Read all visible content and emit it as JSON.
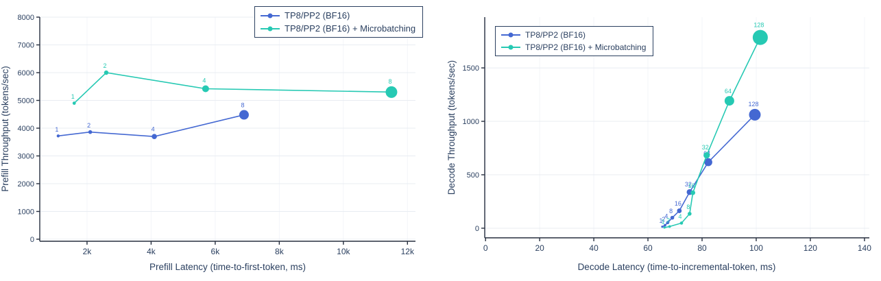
{
  "colors": {
    "blue": "#4468D2",
    "teal": "#26C9B3",
    "text": "#2a3f5f",
    "axis": "#262e3e",
    "grid": "#e8ecf2",
    "vgrid": "#f3f5f9",
    "background": "#ffffff"
  },
  "chart_data": [
    {
      "type": "line",
      "title": "",
      "xlabel": "Prefill Latency (time-to-first-token, ms)",
      "ylabel": "Prefill Throughput (tokens/sec)",
      "xlim": [
        525,
        12250
      ],
      "ylim": [
        -74,
        8000
      ],
      "grid": "on",
      "legend_position": "top-right-inside",
      "xticks": [
        {
          "v": 2000,
          "label": "2k"
        },
        {
          "v": 4000,
          "label": "4k"
        },
        {
          "v": 6000,
          "label": "6k"
        },
        {
          "v": 8000,
          "label": "8k"
        },
        {
          "v": 10000,
          "label": "10k"
        },
        {
          "v": 12000,
          "label": "12k"
        }
      ],
      "yticks": [
        {
          "v": 0,
          "label": "0"
        },
        {
          "v": 1000,
          "label": "1000"
        },
        {
          "v": 2000,
          "label": "2000"
        },
        {
          "v": 3000,
          "label": "3000"
        },
        {
          "v": 4000,
          "label": "4000"
        },
        {
          "v": 5000,
          "label": "5000"
        },
        {
          "v": 6000,
          "label": "6000"
        },
        {
          "v": 7000,
          "label": "7000"
        },
        {
          "v": 8000,
          "label": "8000"
        }
      ],
      "series": [
        {
          "name": "TP8/PP2 (BF16)",
          "color_key": "blue",
          "point_label_meaning": "batch size",
          "points": [
            {
              "label": "1",
              "x": 1100,
              "y": 3720,
              "r": 2.2
            },
            {
              "label": "2",
              "x": 2100,
              "y": 3860,
              "r": 2.8
            },
            {
              "label": "4",
              "x": 4100,
              "y": 3700,
              "r": 3.8
            },
            {
              "label": "8",
              "x": 6900,
              "y": 4480,
              "r": 7
            }
          ]
        },
        {
          "name": "TP8/PP2 (BF16) + Microbatching",
          "color_key": "teal",
          "point_label_meaning": "batch size",
          "points": [
            {
              "label": "1",
              "x": 1600,
              "y": 4900,
              "r": 2.4
            },
            {
              "label": "2",
              "x": 2600,
              "y": 6000,
              "r": 3.2
            },
            {
              "label": "4",
              "x": 5700,
              "y": 5420,
              "r": 5
            },
            {
              "label": "8",
              "x": 11500,
              "y": 5300,
              "r": 8.5
            }
          ]
        }
      ]
    },
    {
      "type": "line",
      "title": "",
      "xlabel": "Decode Latency (time-to-incremental-token, ms)",
      "ylabel": "Decode Throughput (tokens/sec)",
      "xlim": [
        -0.3,
        141.8
      ],
      "ylim": [
        -90,
        1975
      ],
      "grid": "on",
      "legend_position": "top-left-inside",
      "xticks": [
        {
          "v": 0,
          "label": "0"
        },
        {
          "v": 20,
          "label": "20"
        },
        {
          "v": 40,
          "label": "40"
        },
        {
          "v": 60,
          "label": "60"
        },
        {
          "v": 80,
          "label": "80"
        },
        {
          "v": 100,
          "label": "100"
        },
        {
          "v": 120,
          "label": "120"
        },
        {
          "v": 140,
          "label": "140"
        }
      ],
      "yticks": [
        {
          "v": 0,
          "label": "0"
        },
        {
          "v": 500,
          "label": "500"
        },
        {
          "v": 1000,
          "label": "1000"
        },
        {
          "v": 1500,
          "label": "1500"
        }
      ],
      "series": [
        {
          "name": "TP8/PP2 (BF16)",
          "color_key": "blue",
          "point_label_meaning": "batch size",
          "points": [
            {
              "label": "1",
              "x": 65.3,
              "y": 14,
              "r": 1.6
            },
            {
              "label": "2",
              "x": 66.3,
              "y": 27,
              "r": 1.9
            },
            {
              "label": "4",
              "x": 67.3,
              "y": 52,
              "r": 2.3
            },
            {
              "label": "8",
              "x": 69,
              "y": 98,
              "r": 2.8
            },
            {
              "label": "16",
              "x": 71.6,
              "y": 163,
              "r": 3.4
            },
            {
              "label": "32",
              "x": 75.4,
              "y": 338,
              "r": 4.3
            },
            {
              "label": "64",
              "x": 82.3,
              "y": 618,
              "r": 5.8
            },
            {
              "label": "128",
              "x": 99.5,
              "y": 1062,
              "r": 8.5
            }
          ]
        },
        {
          "name": "TP8/PP2 (BF16) + Microbatching",
          "color_key": "teal",
          "point_label_meaning": "batch size",
          "points": [
            {
              "label": "1",
              "x": 66.1,
              "y": 6,
              "r": 1.6
            },
            {
              "label": "2",
              "x": 68,
              "y": 16,
              "r": 1.9
            },
            {
              "label": "4",
              "x": 72.4,
              "y": 48,
              "r": 2.3
            },
            {
              "label": "8",
              "x": 75.4,
              "y": 135,
              "r": 2.8
            },
            {
              "label": "16",
              "x": 76.6,
              "y": 332,
              "r": 3.4
            },
            {
              "label": "32",
              "x": 81.7,
              "y": 682,
              "r": 4.6
            },
            {
              "label": "64",
              "x": 90.1,
              "y": 1192,
              "r": 7
            },
            {
              "label": "128",
              "x": 101.5,
              "y": 1785,
              "r": 11
            }
          ]
        }
      ]
    }
  ]
}
